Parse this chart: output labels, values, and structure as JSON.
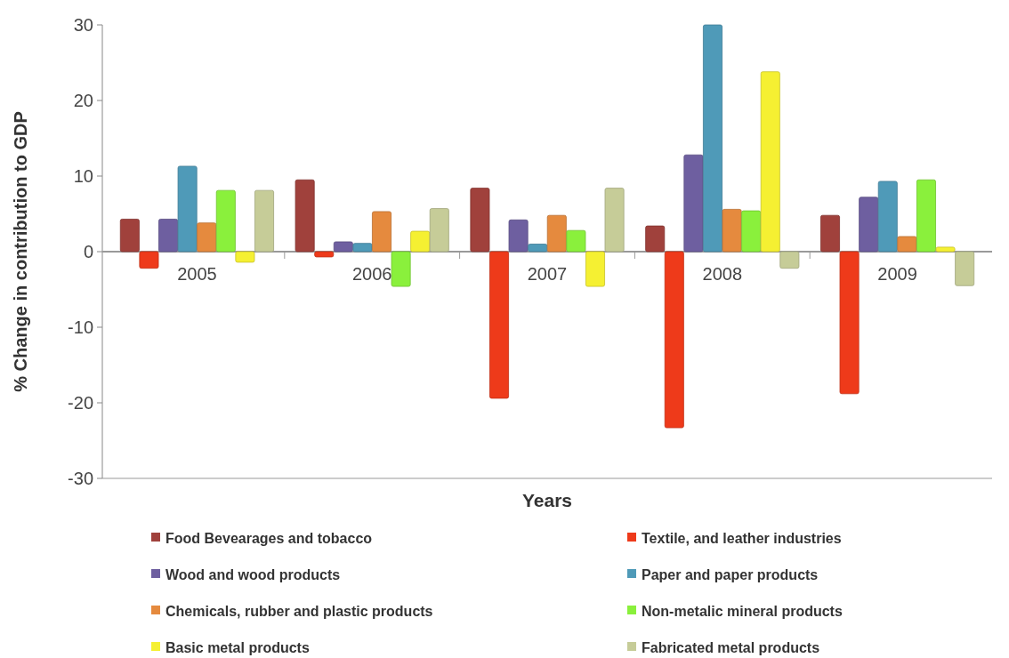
{
  "chart_data": {
    "type": "bar",
    "xlabel": "Years",
    "ylabel": "% Change in contribution to GDP",
    "categories": [
      "2005",
      "2006",
      "2007",
      "2008",
      "2009"
    ],
    "series": [
      {
        "name": "Food Bevearages and tobacco",
        "color": "#a0413c",
        "values": [
          4.3,
          9.5,
          8.4,
          3.4,
          4.8
        ]
      },
      {
        "name": "Textile, and leather industries",
        "color": "#ee3a1a",
        "values": [
          -2.2,
          -0.7,
          -19.4,
          -23.3,
          -18.8
        ]
      },
      {
        "name": "Wood and wood products",
        "color": "#6e5fa0",
        "values": [
          4.3,
          1.3,
          4.2,
          12.8,
          7.2
        ]
      },
      {
        "name": "Paper and paper products",
        "color": "#4f9ab8",
        "values": [
          11.3,
          1.1,
          1.0,
          30,
          9.3
        ]
      },
      {
        "name": "Chemicals, rubber and plastic products",
        "color": "#e58a3e",
        "values": [
          3.8,
          5.3,
          4.8,
          5.6,
          2.0
        ]
      },
      {
        "name": "Non-metalic mineral products",
        "color": "#8af03c",
        "values": [
          8.1,
          -4.6,
          2.8,
          5.4,
          9.5
        ]
      },
      {
        "name": "Basic metal products",
        "color": "#f5f032",
        "values": [
          -1.4,
          2.7,
          -4.6,
          23.8,
          0.6
        ]
      },
      {
        "name": "Fabricated metal products",
        "color": "#c6cc98",
        "values": [
          8.1,
          5.7,
          8.4,
          -2.2,
          -4.5
        ]
      }
    ],
    "ylim": [
      -30,
      30
    ],
    "yticks": [
      -30,
      -20,
      -10,
      0,
      10,
      20,
      30
    ],
    "grid": false,
    "legend": "bottom"
  }
}
